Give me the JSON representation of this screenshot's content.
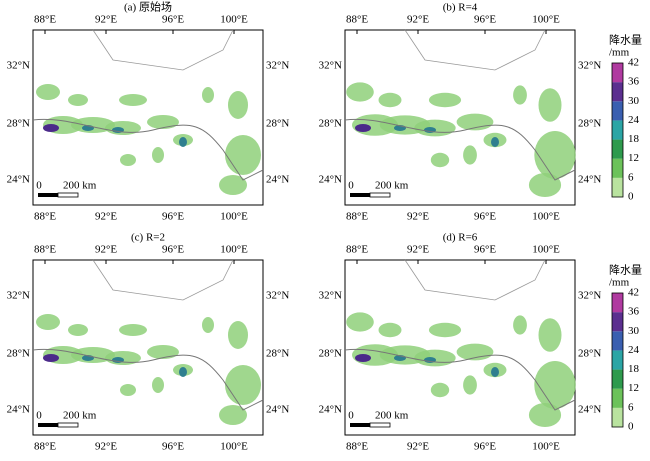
{
  "panels": [
    {
      "title": "(a) 原始场"
    },
    {
      "title": "(b) R=4"
    },
    {
      "title": "(c) R=2"
    },
    {
      "title": "(d) R=6"
    }
  ],
  "lon_labels": [
    "88°E",
    "92°E",
    "96°E",
    "100°E"
  ],
  "lat_labels": [
    "32°N",
    "28°N",
    "24°N"
  ],
  "scale_bar": {
    "start": "0",
    "length": "200 km"
  },
  "colorbar": {
    "title": "降水量",
    "unit": "/mm",
    "ticks": [
      "0",
      "6",
      "12",
      "18",
      "24",
      "30",
      "36",
      "42"
    ]
  }
}
